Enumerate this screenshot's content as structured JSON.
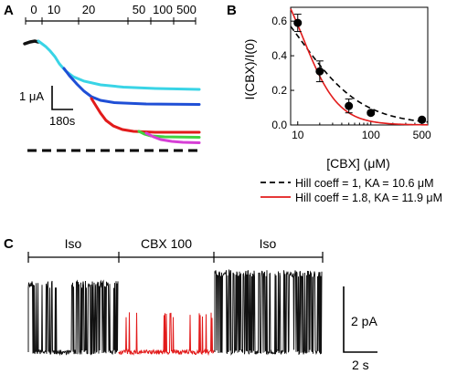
{
  "panel_a": {
    "label": "A",
    "conc_ticks": [
      "0",
      "10",
      "20",
      "50",
      "100",
      "500"
    ],
    "scale_current": "1 μA",
    "scale_time": "180s",
    "trace_colors": [
      "#39d4e6",
      "#1f4fd6",
      "#e21b1b",
      "#3fd23f",
      "#d63fd6"
    ]
  },
  "panel_b": {
    "label": "B",
    "legend": [
      {
        "style": "dashed",
        "color": "#000000",
        "text": "Hill coeff = 1, KA = 10.6 μM"
      },
      {
        "style": "solid",
        "color": "#e21b1b",
        "text": "Hill coeff = 1.8, KA = 11.9 μM"
      }
    ]
  },
  "panel_c": {
    "label": "C",
    "segments": [
      "Iso",
      "CBX 100",
      "Iso"
    ],
    "scale_current": "2 pA",
    "scale_time": "2 s"
  },
  "chart_data": {
    "type": "scatter",
    "xlabel": "[CBX]  (μM)",
    "ylabel": "I(CBX)/I(0)",
    "x_scale": "log",
    "x_ticks": [
      "10",
      "100",
      "500"
    ],
    "y_ticks": [
      "0.0",
      "0.2",
      "0.4",
      "0.6"
    ],
    "xlim": [
      8,
      600
    ],
    "ylim": [
      0,
      0.68
    ],
    "series": [
      {
        "x": [
          10,
          20,
          50,
          100,
          500
        ],
        "y": [
          0.59,
          0.31,
          0.11,
          0.07,
          0.03
        ],
        "err": [
          0.05,
          0.06,
          0.04,
          0.01,
          0.01
        ]
      }
    ]
  }
}
